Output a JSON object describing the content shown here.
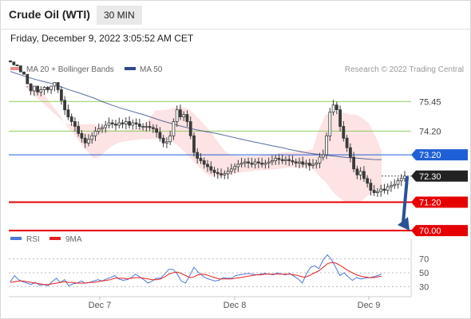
{
  "header": {
    "title": "Crude Oil (WTI)",
    "timeframe": "30 MIN",
    "timestamp": "Friday, December 9, 2022 3:05:52 AM CET"
  },
  "legend": {
    "bb_label": "MA 20 + Bollinger Bands",
    "ma50_label": "MA 50",
    "source": "Research © 2022 Trading Central",
    "rsi_label": "RSI",
    "ma9_label": "9MA"
  },
  "colors": {
    "support": "#e60000",
    "resistance": "#8fce5e",
    "pivot": "#1f5fd6",
    "ma50": "#2e4a8a",
    "bb_fill": "#fde3e3",
    "bb_line": "#f08c8c",
    "candle": "#3a3a3a",
    "rsi": "#4d7ad9",
    "ma9": "#e62020",
    "current_price": "#222222",
    "arrow": "#2a5298"
  },
  "chart_data": [
    {
      "type": "candlestick",
      "instrument": "Crude Oil (WTI)",
      "interval": "30 MIN",
      "ylim": [
        69.8,
        76.1
      ],
      "x_ticks": [
        "Dec 7",
        "Dec 8",
        "Dec 9"
      ],
      "levels": [
        {
          "label": "75.45",
          "value": 75.45,
          "kind": "resistance"
        },
        {
          "label": "74.20",
          "value": 74.2,
          "kind": "resistance"
        },
        {
          "label": "73.20",
          "value": 73.2,
          "kind": "pivot"
        },
        {
          "label": "72.30",
          "value": 72.3,
          "kind": "current"
        },
        {
          "label": "71.20",
          "value": 71.2,
          "kind": "support"
        },
        {
          "label": "70.00",
          "value": 70.0,
          "kind": "support"
        }
      ],
      "close": [
        77.12,
        77.0,
        76.96,
        76.7,
        76.6,
        76.2,
        75.9,
        76.1,
        75.85,
        75.95,
        76.05,
        75.95,
        76.1,
        76.25,
        75.95,
        75.5,
        75.1,
        74.8,
        74.6,
        74.4,
        74.1,
        73.9,
        73.7,
        73.85,
        74.0,
        74.2,
        74.3,
        74.35,
        74.45,
        74.55,
        74.5,
        74.45,
        74.55,
        74.5,
        74.6,
        74.45,
        74.55,
        74.5,
        74.4,
        74.4,
        74.4,
        74.35,
        74.3,
        74.15,
        73.9,
        73.7,
        73.75,
        74.0,
        74.6,
        75.1,
        74.8,
        74.9,
        74.6,
        74.0,
        73.3,
        73.05,
        72.95,
        72.8,
        72.7,
        72.55,
        72.45,
        72.4,
        72.35,
        72.4,
        72.5,
        72.6,
        72.7,
        72.8,
        72.85,
        72.9,
        72.85,
        72.8,
        72.9,
        72.85,
        72.8,
        72.85,
        72.9,
        72.95,
        73.05,
        73.0,
        72.95,
        73.0,
        72.95,
        72.9,
        72.85,
        72.9,
        72.8,
        72.85,
        72.75,
        72.8,
        72.85,
        73.1,
        73.2,
        74.0,
        75.0,
        75.3,
        75.1,
        74.4,
        73.9,
        73.5,
        73.1,
        72.6,
        72.35,
        72.5,
        72.2,
        72.0,
        71.7,
        71.6,
        71.65,
        71.75,
        71.7,
        71.85,
        71.9,
        71.95,
        72.1,
        72.2,
        72.3
      ],
      "ma50": [
        76.72,
        76.6,
        76.48,
        76.38,
        76.29,
        76.2,
        76.07,
        75.94,
        75.83,
        75.71,
        75.58,
        75.43,
        75.3,
        75.18,
        75.08,
        74.97,
        74.87,
        74.75,
        74.63,
        74.53,
        74.43,
        74.34,
        74.26,
        74.19,
        74.13,
        74.06,
        73.97,
        73.89,
        73.81,
        73.73,
        73.66,
        73.58,
        73.52,
        73.43,
        73.36,
        73.29,
        73.24,
        73.2,
        73.16,
        73.12,
        73.08,
        73.06,
        73.03,
        73.0,
        72.99
      ],
      "bb_upper": [
        76.1,
        75.87,
        75.63,
        75.39,
        75.15,
        74.9,
        74.68,
        74.49,
        74.49,
        74.49,
        74.49,
        74.49,
        74.42,
        74.31,
        74.24,
        74.24,
        74.24,
        74.27,
        74.32,
        74.42,
        74.74,
        75.08,
        75.08,
        75.11,
        75.19,
        75.19,
        75.18,
        74.97,
        74.67,
        74.4,
        74.08,
        73.71,
        73.36,
        73.19,
        73.16,
        73.14,
        73.14,
        73.14,
        73.18,
        73.23,
        73.23,
        73.28,
        73.31,
        73.33,
        73.37,
        73.37,
        73.44,
        74.24,
        74.87,
        74.97,
        74.97,
        74.97,
        74.9,
        74.9,
        74.74,
        74.51,
        74.01,
        73.36
      ],
      "bb_lower": [
        76.81,
        76.5,
        76.18,
        75.84,
        75.47,
        75.13,
        74.76,
        74.38,
        74.03,
        73.7,
        73.38,
        73.06,
        73.09,
        73.35,
        73.57,
        73.7,
        73.76,
        73.81,
        73.84,
        73.86,
        73.86,
        73.86,
        73.84,
        73.82,
        73.71,
        73.48,
        73.21,
        72.93,
        72.66,
        72.4,
        72.29,
        72.26,
        72.32,
        72.38,
        72.43,
        72.48,
        72.5,
        72.53,
        72.55,
        72.56,
        72.59,
        72.62,
        72.65,
        72.66,
        72.66,
        72.67,
        72.66,
        72.3,
        72.07,
        71.71,
        71.43,
        71.25,
        71.16,
        71.16,
        71.29,
        71.52,
        71.71,
        71.8
      ]
    },
    {
      "type": "line",
      "name": "RSI",
      "ylim": [
        20,
        80
      ],
      "y_ticks": [
        70,
        50,
        30
      ],
      "series": [
        {
          "name": "RSI",
          "values": [
            37,
            46,
            40,
            37,
            35,
            33,
            36,
            32,
            33,
            31,
            37,
            42,
            36,
            40,
            31,
            34,
            35,
            38,
            35,
            36,
            38,
            40,
            38,
            41,
            43,
            46,
            41,
            39,
            40,
            43,
            48,
            44,
            40,
            35,
            38,
            42,
            42,
            48,
            55,
            55,
            48,
            38,
            35,
            46,
            58,
            51,
            46,
            42,
            40,
            38,
            39,
            43,
            42,
            42,
            46,
            47,
            48,
            49,
            48,
            47,
            48,
            49,
            48,
            47,
            50,
            48,
            47,
            49,
            45,
            41,
            35,
            49,
            58,
            60,
            56,
            69,
            76,
            69,
            58,
            46,
            50,
            44,
            39,
            43,
            41,
            42,
            43,
            44,
            46,
            48
          ]
        },
        {
          "name": "9MA",
          "values": [
            36,
            37,
            38,
            38,
            37,
            36,
            35,
            34,
            33,
            33,
            34,
            35,
            36,
            37,
            36,
            36,
            35,
            35,
            35,
            36,
            36,
            37,
            38,
            39,
            40,
            42,
            42,
            42,
            41,
            42,
            43,
            43,
            42,
            41,
            40,
            40,
            41,
            44,
            48,
            50,
            51,
            49,
            46,
            43,
            44,
            47,
            48,
            47,
            45,
            43,
            41,
            41,
            41,
            41,
            42,
            43,
            44,
            45,
            46,
            47,
            47,
            48,
            48,
            48,
            48,
            48,
            48,
            48,
            47,
            46,
            44,
            44,
            47,
            50,
            53,
            58,
            63,
            65,
            64,
            61,
            57,
            53,
            50,
            47,
            45,
            44,
            43,
            43,
            44,
            45
          ]
        }
      ]
    }
  ]
}
